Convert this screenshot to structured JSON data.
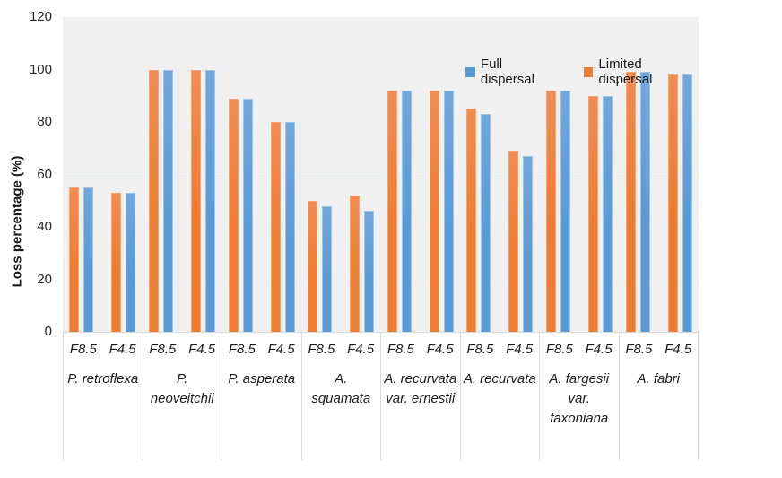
{
  "chart_data": {
    "type": "bar",
    "title": "",
    "ylabel": "Loss percentage (%)",
    "ylim": [
      0,
      120
    ],
    "yticks": [
      0,
      20,
      40,
      60,
      80,
      100,
      120
    ],
    "grid": true,
    "legend_position": "top-right-inside",
    "legend": [
      {
        "name": "Full dispersal",
        "key": "full",
        "color": "#5B9BD5"
      },
      {
        "name": "Limited dispersal",
        "key": "limited",
        "color": "#ED7D31"
      }
    ],
    "bar_draw_order_per_pair": [
      "limited",
      "full"
    ],
    "groups": [
      {
        "species": "P. retroflexa",
        "scenarios": [
          {
            "label": "F8.5",
            "limited": 55,
            "full": 55
          },
          {
            "label": "F4.5",
            "limited": 53,
            "full": 53
          }
        ]
      },
      {
        "species": "P. neoveitchii",
        "scenarios": [
          {
            "label": "F8.5",
            "limited": 100,
            "full": 100
          },
          {
            "label": "F4.5",
            "limited": 100,
            "full": 100
          }
        ]
      },
      {
        "species": "P. asperata",
        "scenarios": [
          {
            "label": "F8.5",
            "limited": 89,
            "full": 89
          },
          {
            "label": "F4.5",
            "limited": 80,
            "full": 80
          }
        ]
      },
      {
        "species": "A. squamata",
        "scenarios": [
          {
            "label": "F8.5",
            "limited": 50,
            "full": 48
          },
          {
            "label": "F4.5",
            "limited": 52,
            "full": 46
          }
        ]
      },
      {
        "species": "A. recurvata var. ernestii",
        "scenarios": [
          {
            "label": "F8.5",
            "limited": 92,
            "full": 92
          },
          {
            "label": "F4.5",
            "limited": 92,
            "full": 92
          }
        ]
      },
      {
        "species": "A. recurvata",
        "scenarios": [
          {
            "label": "F8.5",
            "limited": 85,
            "full": 83
          },
          {
            "label": "F4.5",
            "limited": 69,
            "full": 67
          }
        ]
      },
      {
        "species": "A. fargesii var. faxoniana",
        "scenarios": [
          {
            "label": "F8.5",
            "limited": 92,
            "full": 92
          },
          {
            "label": "F4.5",
            "limited": 90,
            "full": 90
          }
        ]
      },
      {
        "species": "A. fabri",
        "scenarios": [
          {
            "label": "F8.5",
            "limited": 99,
            "full": 99
          },
          {
            "label": "F4.5",
            "limited": 98,
            "full": 98
          }
        ]
      }
    ],
    "colors": {
      "full": "#5B9BD5",
      "full_light": "#9DC3E6",
      "full_grad": "#6FA8DC",
      "limited": "#ED7D31",
      "limited_light": "#F4A471",
      "limited_grad": "#F28C52",
      "plot_bg": "#F0F0F0",
      "gridline": "#E7EDF3",
      "axis_line": "#D9D9D9",
      "text": "#262626"
    }
  }
}
